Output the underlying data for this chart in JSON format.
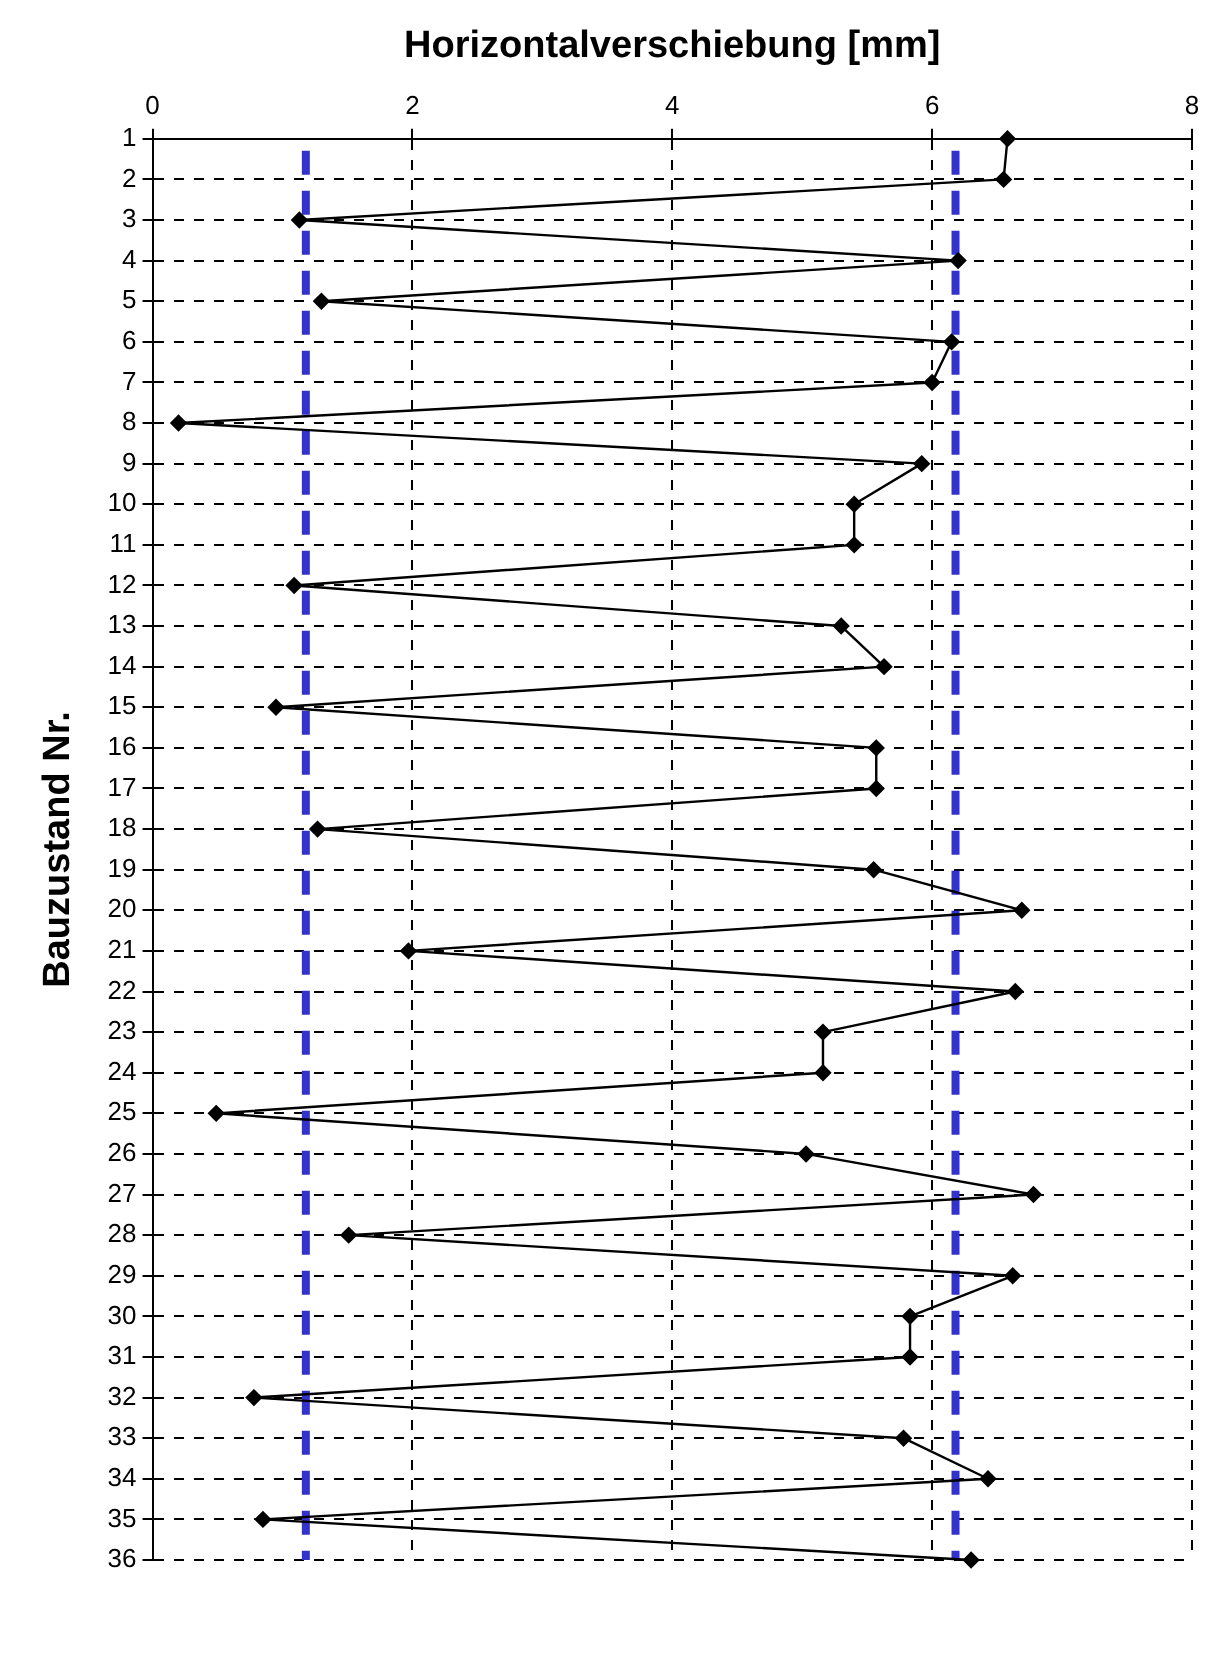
{
  "chart_data": {
    "type": "line",
    "orientation": "horizontal",
    "xlabel": "Horizontalverschiebung [mm]",
    "ylabel": "Bauzustand Nr.",
    "categories": [
      "1",
      "2",
      "3",
      "4",
      "5",
      "6",
      "7",
      "8",
      "9",
      "10",
      "11",
      "12",
      "13",
      "14",
      "15",
      "16",
      "17",
      "18",
      "19",
      "20",
      "21",
      "22",
      "23",
      "24",
      "25",
      "26",
      "27",
      "28",
      "29",
      "30",
      "31",
      "32",
      "33",
      "34",
      "35",
      "36"
    ],
    "values": [
      6.58,
      6.55,
      1.13,
      6.2,
      1.3,
      6.15,
      6.0,
      0.2,
      5.92,
      5.4,
      5.4,
      1.09,
      5.3,
      5.63,
      0.95,
      5.57,
      5.57,
      1.27,
      5.55,
      6.69,
      1.97,
      6.64,
      5.16,
      5.16,
      0.49,
      5.03,
      6.78,
      1.51,
      6.62,
      5.83,
      5.83,
      0.78,
      5.78,
      6.43,
      0.85,
      6.3
    ],
    "color": "#000000",
    "marker": "diamond",
    "line_style": "solid",
    "xlim": [
      0,
      8
    ],
    "xticks": [
      0,
      2,
      4,
      6,
      8
    ],
    "grid": true,
    "legend": false,
    "ref_lines": [
      {
        "axis": "x",
        "value": 1.18,
        "color": "#3333cc",
        "line_style": "dashed"
      },
      {
        "axis": "x",
        "value": 6.18,
        "color": "#3333cc",
        "line_style": "dashed"
      }
    ]
  }
}
